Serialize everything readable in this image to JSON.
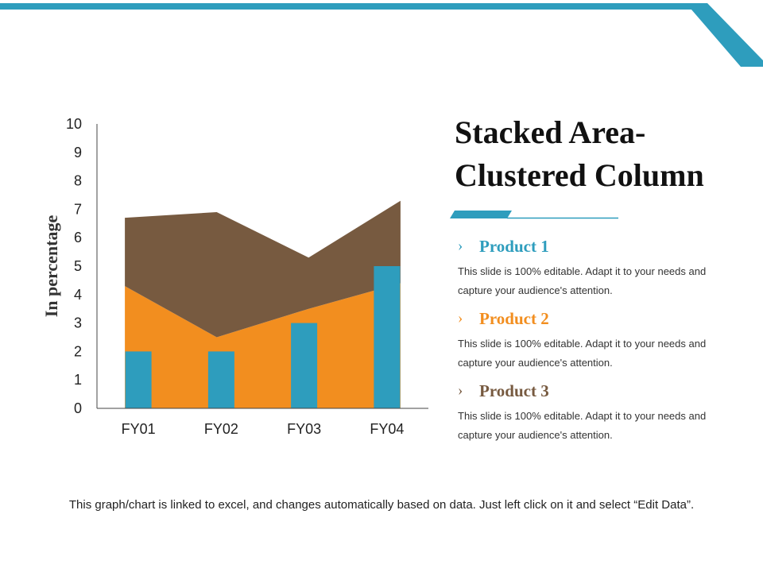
{
  "slide": {
    "title": "Stacked Area-Clustered Column",
    "footer": "This graph/chart is linked to excel, and changes automatically based on data. Just left click on it and select “Edit Data”.",
    "accent_color": "#2e9dbd"
  },
  "products": [
    {
      "label": "Product 1",
      "color": "#2e9dbd",
      "description": "This slide is 100% editable. Adapt it to your needs and capture your audience's attention.",
      "chevron": "chevron-right-icon"
    },
    {
      "label": "Product 2",
      "color": "#f28e1f",
      "description": "This slide is 100% editable. Adapt it to your needs and capture your audience's attention.",
      "chevron": "chevron-right-icon"
    },
    {
      "label": "Product 3",
      "color": "#775a40",
      "description": "This slide is 100% editable. Adapt it to your needs and capture your audience's attention.",
      "chevron": "chevron-right-icon"
    }
  ],
  "chart_data": {
    "type": "bar",
    "title": "",
    "categories": [
      "FY01",
      "FY02",
      "FY03",
      "FY04"
    ],
    "ylabel": "In percentage",
    "xlabel": "",
    "ylim": [
      0,
      10
    ],
    "yticks": [
      0,
      1,
      2,
      3,
      4,
      5,
      6,
      7,
      8,
      9,
      10
    ],
    "grid": false,
    "series": [
      {
        "name": "Product 1",
        "chart": "column",
        "color": "#2e9dbd",
        "values": [
          2,
          2,
          3,
          5
        ]
      },
      {
        "name": "Product 2",
        "chart": "stacked-area",
        "color": "#f28e1f",
        "values": [
          4.3,
          2.5,
          3.5,
          4.4
        ]
      },
      {
        "name": "Product 3",
        "chart": "stacked-area",
        "color": "#775a40",
        "values": [
          2.4,
          4.4,
          1.8,
          2.9
        ]
      }
    ]
  }
}
